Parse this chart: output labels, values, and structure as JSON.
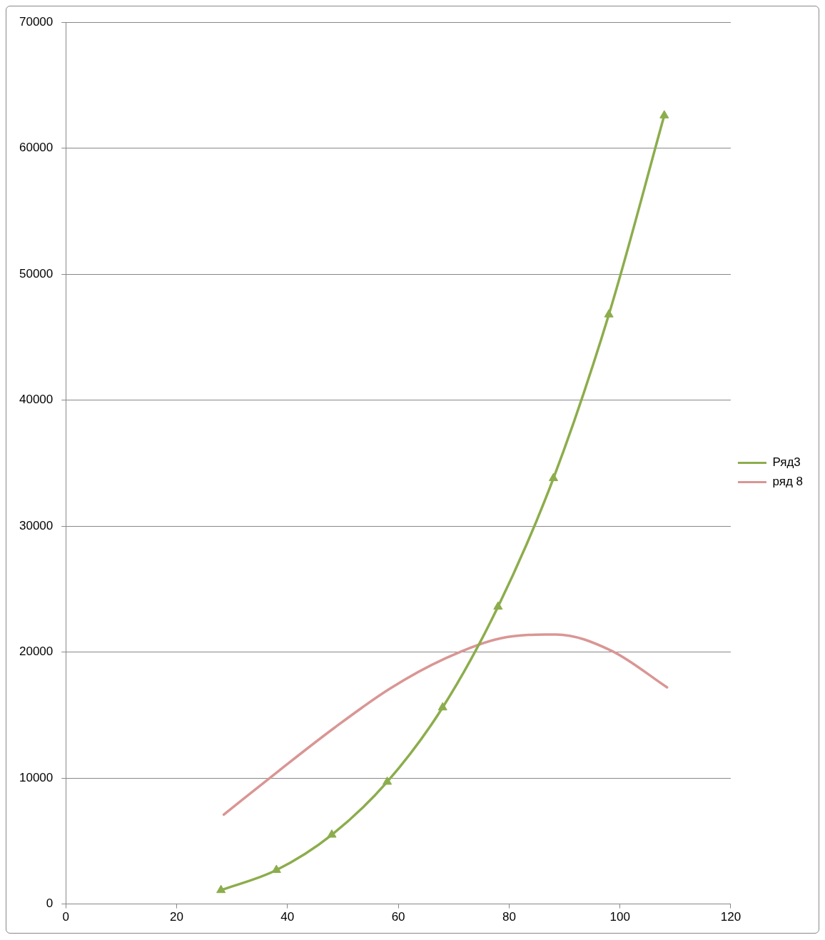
{
  "chart_data": {
    "type": "line",
    "legend": "right",
    "grid": "y",
    "xlim": [
      0,
      120
    ],
    "xticks": [
      0,
      20,
      40,
      60,
      80,
      100,
      120
    ],
    "ylim": [
      0,
      70000
    ],
    "yticks": [
      0,
      10000,
      20000,
      30000,
      40000,
      50000,
      60000,
      70000
    ],
    "series": [
      {
        "name": "Ряд3",
        "color": "#8cad4c",
        "marker": "triangle",
        "x": [
          28,
          38,
          48,
          58,
          68,
          78,
          88,
          98,
          108
        ],
        "values": [
          1100,
          2700,
          5500,
          9700,
          15600,
          23600,
          33800,
          46800,
          62600
        ]
      },
      {
        "name": "ряд 8",
        "color": "#d99694",
        "marker": "none",
        "x": [
          28.5,
          38.5,
          48.5,
          58.5,
          68.5,
          78.5,
          88.5,
          98.5,
          108.5
        ],
        "values": [
          7100,
          10600,
          14000,
          17100,
          19500,
          21100,
          21400,
          20100,
          17200
        ]
      }
    ]
  }
}
